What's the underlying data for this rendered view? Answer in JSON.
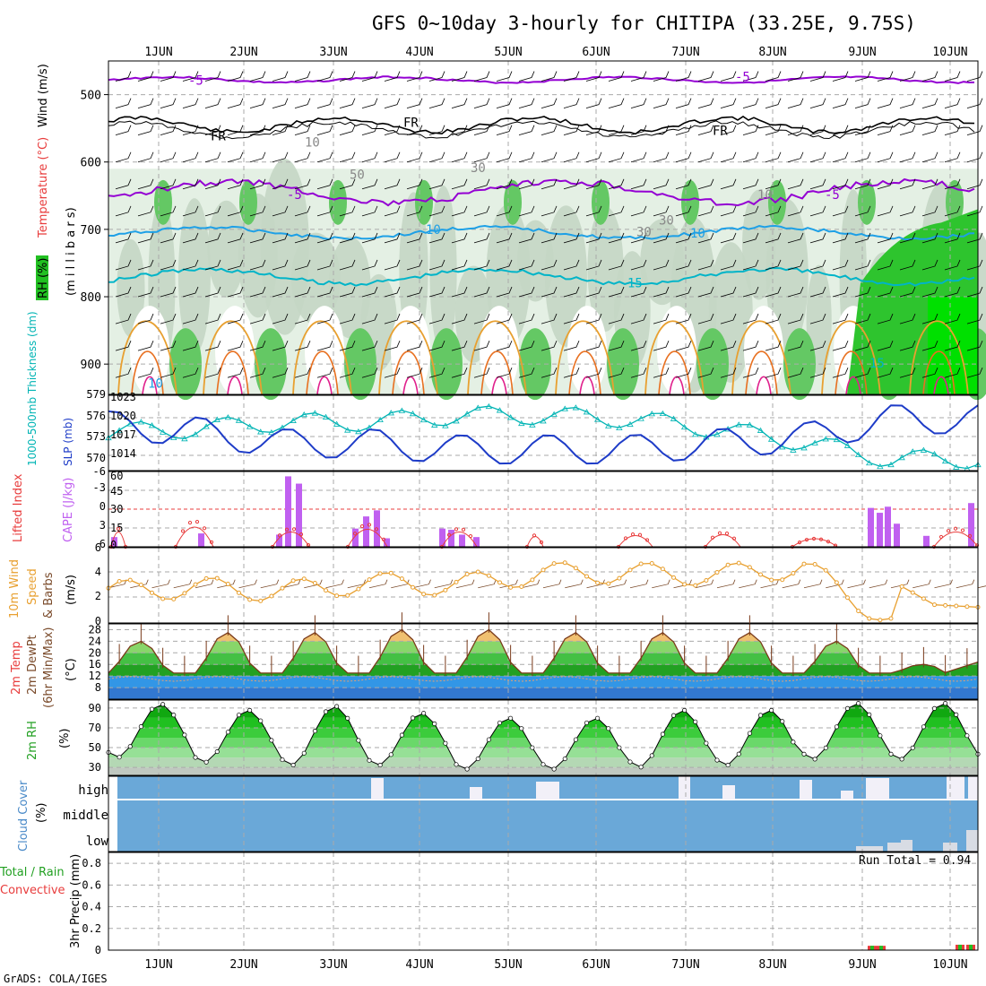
{
  "title": "GFS 0~10day 3-hourly for CHITIPA (33.25E, 9.75S)",
  "footer": "GrADS: COLA/IGES",
  "dates": [
    "1JUN",
    "2JUN",
    "3JUN",
    "4JUN",
    "5JUN",
    "6JUN",
    "7JUN",
    "8JUN",
    "9JUN",
    "10JUN"
  ],
  "colors": {
    "purple": "#9400d3",
    "cyan": "#00c8c8",
    "blue": "#1e3cc8",
    "orange": "#e8a030",
    "red": "#e83c3c",
    "green": "#22c022",
    "cloud": "#6aa8d8",
    "grid": "#b4b4b4"
  },
  "panel_upper": {
    "ylabel_parts": [
      "RH (%)",
      "Temperature (°C)",
      "Wind (m/s)"
    ],
    "ylabel_units": "(m i l l i b a r s)",
    "ticks": [
      "500",
      "600",
      "700",
      "800",
      "900"
    ],
    "contour_labels": [
      "-5",
      "-5",
      "-5",
      "-5",
      "FR",
      "FR",
      "FR",
      "10",
      "10",
      "15",
      "15",
      "10",
      "30",
      "50",
      "10",
      "30",
      "30",
      "10"
    ]
  },
  "panel_slp": {
    "label_left": "1000-500mb Thickness (dm)",
    "label_right": "SLP (mb)",
    "left_ticks": [
      "579",
      "576",
      "573",
      "570"
    ],
    "right_ticks": [
      "1023",
      "1020",
      "1017",
      "1014"
    ]
  },
  "panel_cape": {
    "label_left": "Lifted Index",
    "label_right": "CAPE (J/kg)",
    "left_ticks": [
      "-6",
      "-3",
      "0",
      "3",
      "6"
    ],
    "right_ticks": [
      "60",
      "45",
      "30",
      "15",
      "0"
    ]
  },
  "panel_wind": {
    "label": "10m Wind",
    "label2": "Speed",
    "label3": "& Barbs",
    "unit": "(m/s)",
    "ticks": [
      "6",
      "4",
      "2",
      "0"
    ]
  },
  "panel_temp": {
    "label": "2m Temp",
    "label2": "2m DewPt",
    "label3": "(6hr Min/Max)",
    "unit": "(°C)",
    "ticks": [
      "28",
      "24",
      "20",
      "16",
      "12",
      "8"
    ]
  },
  "panel_rh": {
    "label": "2m RH",
    "unit": "(%)",
    "ticks": [
      "90",
      "70",
      "50",
      "30"
    ]
  },
  "panel_cloud": {
    "label": "Cloud Cover",
    "unit": "(%)",
    "levels": [
      "high",
      "middle",
      "low"
    ]
  },
  "panel_precip": {
    "label": "Total / Rain",
    "label2": "Convective",
    "ylabel": "3hr Precip (mm)",
    "ticks": [
      "0.8",
      "0.6",
      "0.4",
      "0.2",
      "0"
    ],
    "tick_top": "0.8",
    "run_total": "Run Total = 0.94"
  },
  "chart_data": [
    {
      "type": "line",
      "title": "SLP and 1000-500mb thickness",
      "x": [
        "1JUN",
        "2JUN",
        "3JUN",
        "4JUN",
        "5JUN",
        "6JUN",
        "7JUN",
        "8JUN",
        "9JUN",
        "10JUN"
      ],
      "series": [
        {
          "name": "SLP (mb)",
          "values": [
            1019,
            1018,
            1016,
            1016,
            1015,
            1015,
            1015,
            1016,
            1017,
            1020
          ]
        },
        {
          "name": "1000-500mb Thickness (dm)",
          "values": [
            574.5,
            575,
            576,
            576,
            577,
            577,
            576.5,
            575,
            573,
            570.5
          ]
        }
      ]
    },
    {
      "type": "bar",
      "title": "CAPE (J/kg)",
      "x": [
        "1JUN",
        "2JUN",
        "3JUN",
        "4JUN",
        "5JUN",
        "6JUN",
        "7JUN",
        "8JUN",
        "9JUN",
        "10JUN"
      ],
      "series": [
        {
          "name": "CAPE",
          "values": [
            8,
            10,
            55,
            25,
            14,
            0,
            0,
            0,
            30,
            35
          ]
        }
      ]
    },
    {
      "type": "line",
      "title": "10m Wind Speed (m/s)",
      "x": [
        "1JUN",
        "2JUN",
        "3JUN",
        "4JUN",
        "5JUN",
        "6JUN",
        "7JUN",
        "8JUN",
        "9JUN",
        "10JUN"
      ],
      "series": [
        {
          "name": "Speed",
          "values": [
            3.5,
            3.8,
            3.5,
            4.2,
            4.0,
            5.0,
            5.0,
            4.8,
            5.5,
            1.0
          ]
        }
      ]
    },
    {
      "type": "area",
      "title": "2m Temp (°C)",
      "x": [
        "1JUN",
        "2JUN",
        "3JUN",
        "4JUN",
        "5JUN",
        "6JUN",
        "7JUN",
        "8JUN",
        "9JUN",
        "10JUN"
      ],
      "series": [
        {
          "name": "2m Temp max",
          "values": [
            24,
            27,
            27,
            28,
            28,
            27,
            27,
            27,
            24,
            16
          ]
        },
        {
          "name": "2m Temp min",
          "values": [
            13,
            14,
            14,
            14,
            13,
            13,
            13,
            13,
            13,
            12
          ]
        }
      ]
    },
    {
      "type": "area",
      "title": "2m RH (%)",
      "x": [
        "1JUN",
        "2JUN",
        "3JUN",
        "4JUN",
        "5JUN",
        "6JUN",
        "7JUN",
        "8JUN",
        "9JUN",
        "10JUN"
      ],
      "series": [
        {
          "name": "2m RH max",
          "values": [
            94,
            88,
            92,
            85,
            80,
            80,
            88,
            88,
            95,
            95
          ]
        },
        {
          "name": "2m RH min",
          "values": [
            40,
            35,
            32,
            32,
            28,
            28,
            30,
            32,
            38,
            38
          ]
        }
      ]
    },
    {
      "type": "bar",
      "title": "3hr Precip (mm)",
      "x": [
        "1JUN",
        "2JUN",
        "3JUN",
        "4JUN",
        "5JUN",
        "6JUN",
        "7JUN",
        "8JUN",
        "9JUN",
        "10JUN"
      ],
      "series": [
        {
          "name": "Total",
          "values": [
            0,
            0,
            0,
            0,
            0,
            0,
            0,
            0,
            0.04,
            0.04
          ]
        }
      ],
      "ylim": [
        0,
        0.9
      ]
    }
  ]
}
